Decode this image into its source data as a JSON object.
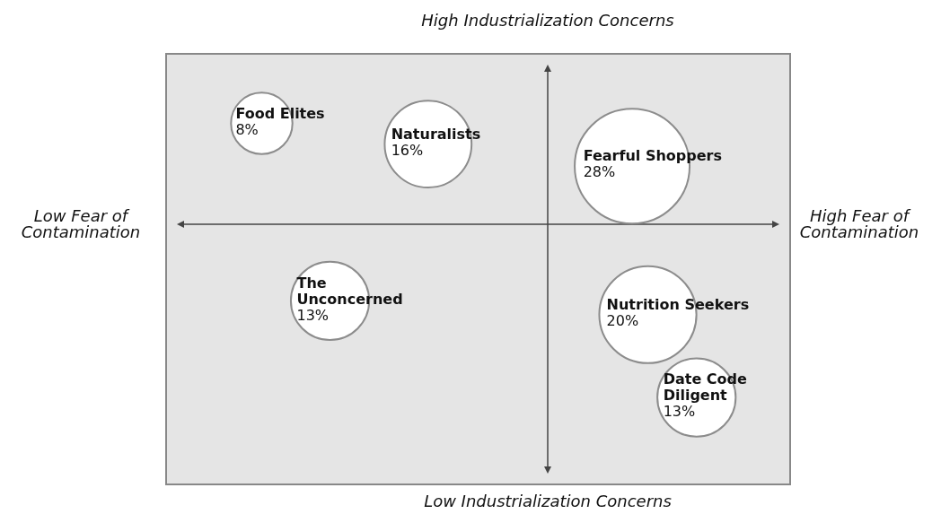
{
  "chart_data": {
    "type": "other",
    "annotations": [
      "High Industrialization Concerns",
      "Low Industrialization Concerns",
      "Low Fear of Contamination",
      "High Fear of Contamination"
    ],
    "categories": [
      "Food Elites",
      "Naturalists",
      "Fearful Shoppers",
      "The Unconcerned",
      "Nutrition Seekers",
      "Date Code Diligent"
    ],
    "values": [
      8,
      16,
      28,
      13,
      20,
      13
    ],
    "value_labels": [
      "8%",
      "16%",
      "28%",
      "13%",
      "20%",
      "13%"
    ],
    "colors": [
      "#ffffff",
      "#ffffff",
      "#ffffff",
      "#ffffff",
      "#ffffff",
      "#ffffff"
    ]
  }
}
